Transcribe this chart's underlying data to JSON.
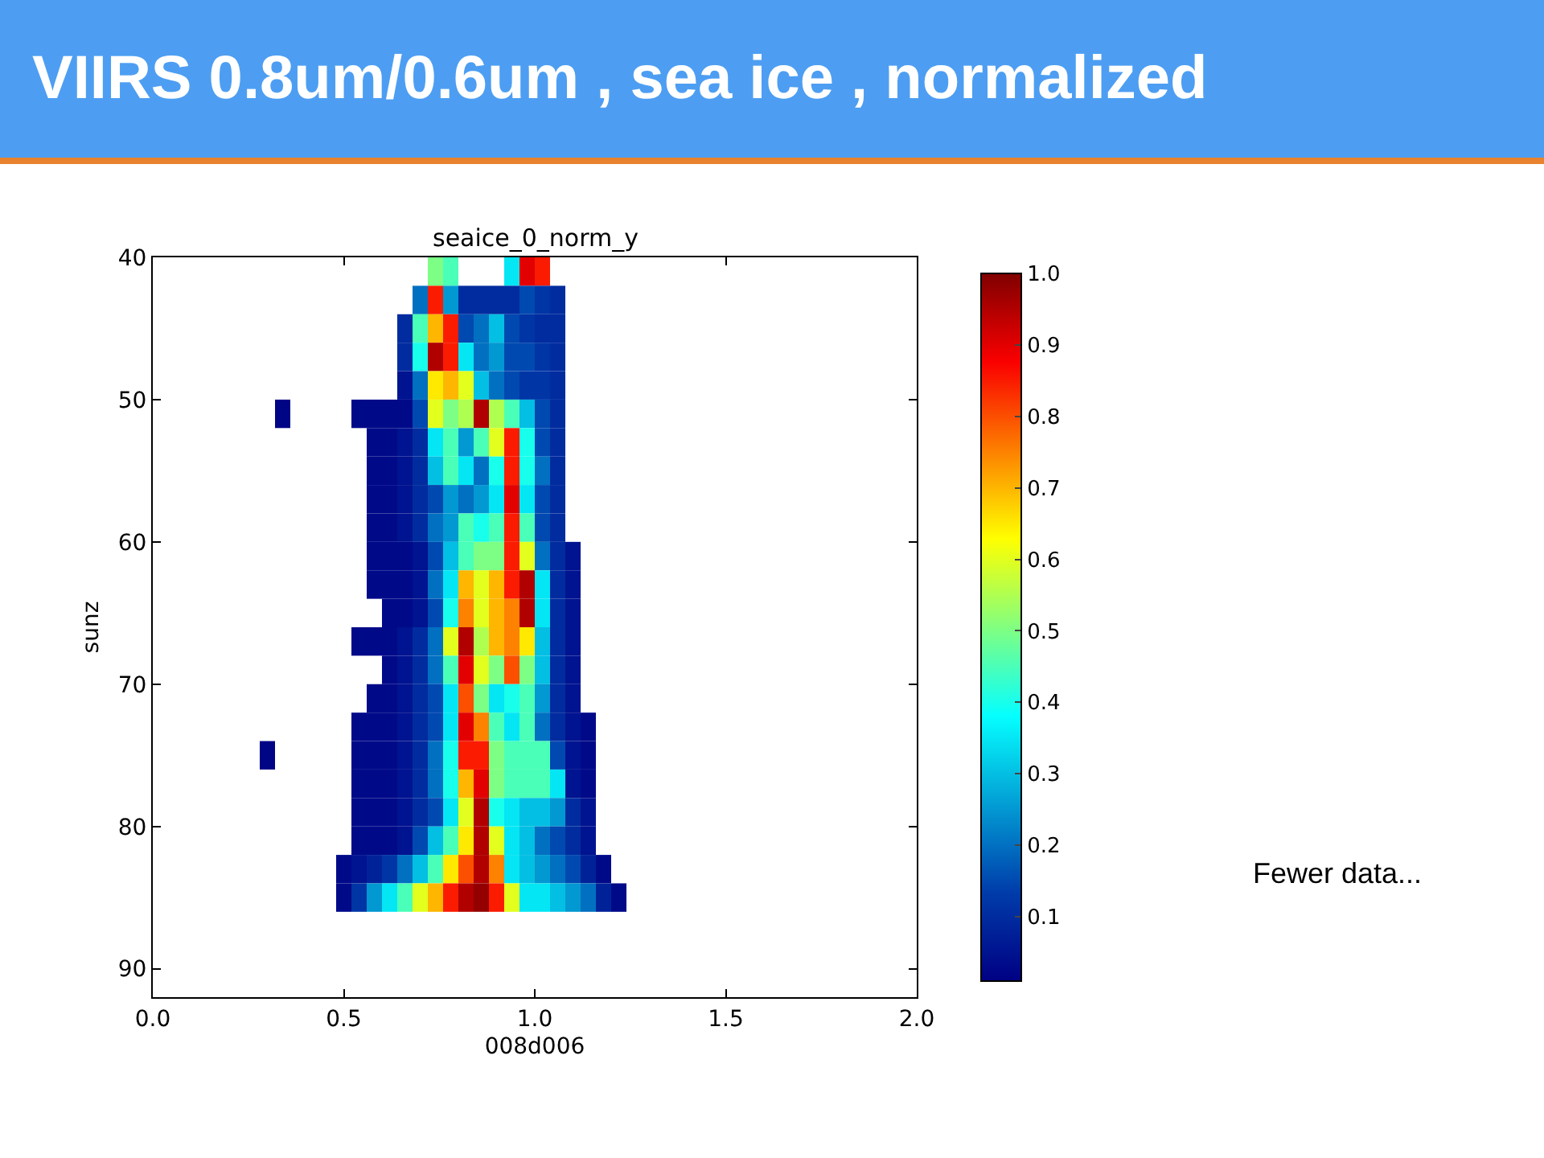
{
  "chart_data": {
    "type": "heatmap",
    "title": "VIIRS 0.8um/0.6um , sea ice , normalized",
    "subtitle": "seaice_0_norm_y",
    "xlabel": "008d006",
    "ylabel": "sunz",
    "x": [
      0.3,
      0.34,
      0.38,
      0.42,
      0.46,
      0.5,
      0.54,
      0.58,
      0.62,
      0.66,
      0.7,
      0.74,
      0.78,
      0.82,
      0.86,
      0.9,
      0.94,
      0.98,
      1.02,
      1.06,
      1.1,
      1.14,
      1.18,
      1.22
    ],
    "y": [
      41,
      43,
      45,
      47,
      49,
      51,
      53,
      55,
      57,
      59,
      61,
      63,
      65,
      67,
      69,
      71,
      73,
      75,
      77,
      79,
      81,
      83,
      85
    ],
    "cells": [
      [
        null,
        null,
        null,
        null,
        null,
        null,
        null,
        null,
        null,
        null,
        null,
        0.5,
        0.45,
        null,
        null,
        null,
        0.35,
        0.9,
        0.85,
        null,
        null,
        null,
        null,
        null
      ],
      [
        null,
        null,
        null,
        null,
        null,
        null,
        null,
        null,
        null,
        null,
        0.2,
        0.85,
        0.25,
        0.1,
        0.1,
        0.1,
        0.1,
        0.15,
        0.12,
        0.1,
        null,
        null,
        null,
        null
      ],
      [
        null,
        null,
        null,
        null,
        null,
        null,
        null,
        null,
        null,
        0.1,
        0.45,
        0.7,
        0.85,
        0.15,
        0.2,
        0.3,
        0.15,
        0.12,
        0.1,
        0.1,
        null,
        null,
        null,
        null
      ],
      [
        null,
        null,
        null,
        null,
        null,
        null,
        null,
        null,
        null,
        0.1,
        0.4,
        0.95,
        0.85,
        0.35,
        0.2,
        0.25,
        0.15,
        0.15,
        0.12,
        0.1,
        null,
        null,
        null,
        null
      ],
      [
        null,
        null,
        null,
        null,
        null,
        null,
        null,
        null,
        null,
        0.05,
        0.2,
        0.65,
        0.7,
        0.6,
        0.3,
        0.2,
        0.15,
        0.12,
        0.12,
        0.1,
        null,
        null,
        null,
        null
      ],
      [
        null,
        0.02,
        null,
        null,
        null,
        null,
        0.03,
        0.03,
        0.03,
        0.03,
        0.15,
        0.6,
        0.5,
        0.55,
        0.95,
        0.55,
        0.45,
        0.3,
        0.15,
        0.1,
        null,
        null,
        null,
        null
      ],
      [
        null,
        null,
        null,
        null,
        null,
        null,
        null,
        0.03,
        0.03,
        0.05,
        0.1,
        0.35,
        0.45,
        0.25,
        0.45,
        0.6,
        0.85,
        0.4,
        0.15,
        0.1,
        null,
        null,
        null,
        null
      ],
      [
        null,
        null,
        null,
        null,
        null,
        null,
        null,
        0.03,
        0.03,
        0.05,
        0.1,
        0.3,
        0.45,
        0.35,
        0.2,
        0.4,
        0.85,
        0.4,
        0.2,
        0.1,
        null,
        null,
        null,
        null
      ],
      [
        null,
        null,
        null,
        null,
        null,
        null,
        null,
        0.03,
        0.03,
        0.05,
        0.1,
        0.15,
        0.25,
        0.2,
        0.25,
        0.35,
        0.9,
        0.35,
        0.15,
        0.1,
        null,
        null,
        null,
        null
      ],
      [
        null,
        null,
        null,
        null,
        null,
        null,
        null,
        0.03,
        0.03,
        0.05,
        0.1,
        0.2,
        0.25,
        0.45,
        0.4,
        0.45,
        0.85,
        0.45,
        0.15,
        0.1,
        null,
        null,
        null,
        null
      ],
      [
        null,
        null,
        null,
        null,
        null,
        null,
        null,
        0.03,
        0.03,
        0.03,
        0.05,
        0.15,
        0.3,
        0.45,
        0.5,
        0.5,
        0.85,
        0.6,
        0.2,
        0.1,
        0.05,
        null,
        null,
        null
      ],
      [
        null,
        null,
        null,
        null,
        null,
        null,
        null,
        0.03,
        0.03,
        0.03,
        0.05,
        0.2,
        0.35,
        0.7,
        0.6,
        0.7,
        0.85,
        0.95,
        0.35,
        0.1,
        0.05,
        null,
        null,
        null
      ],
      [
        null,
        null,
        null,
        null,
        null,
        null,
        null,
        null,
        0.03,
        0.03,
        0.05,
        0.15,
        0.4,
        0.75,
        0.6,
        0.7,
        0.75,
        0.95,
        0.35,
        0.1,
        0.05,
        null,
        null,
        null
      ],
      [
        null,
        null,
        null,
        null,
        null,
        null,
        0.03,
        0.03,
        0.03,
        0.05,
        0.1,
        0.2,
        0.6,
        0.95,
        0.55,
        0.7,
        0.75,
        0.65,
        0.3,
        0.1,
        0.05,
        null,
        null,
        null
      ],
      [
        null,
        null,
        null,
        null,
        null,
        null,
        null,
        null,
        0.03,
        0.05,
        0.1,
        0.2,
        0.45,
        0.9,
        0.6,
        0.5,
        0.8,
        0.5,
        0.3,
        0.1,
        0.05,
        null,
        null,
        null
      ],
      [
        null,
        null,
        null,
        null,
        null,
        null,
        null,
        0.03,
        0.03,
        0.05,
        0.1,
        0.15,
        0.35,
        0.8,
        0.5,
        0.35,
        0.4,
        0.45,
        0.25,
        0.1,
        0.05,
        null,
        null,
        null
      ],
      [
        null,
        null,
        null,
        null,
        null,
        null,
        0.03,
        0.03,
        0.03,
        0.05,
        0.1,
        0.15,
        0.35,
        0.9,
        0.75,
        0.45,
        0.35,
        0.45,
        0.2,
        0.1,
        0.05,
        0.03,
        null,
        null
      ],
      [
        0.02,
        null,
        null,
        null,
        null,
        null,
        0.03,
        0.03,
        0.03,
        0.05,
        0.1,
        0.2,
        0.4,
        0.85,
        0.85,
        0.5,
        0.45,
        0.45,
        0.45,
        0.15,
        0.05,
        0.03,
        null,
        null
      ],
      [
        null,
        null,
        null,
        null,
        null,
        null,
        0.03,
        0.03,
        0.03,
        0.05,
        0.1,
        0.2,
        0.4,
        0.7,
        0.9,
        0.5,
        0.45,
        0.45,
        0.45,
        0.35,
        0.05,
        0.03,
        null,
        null
      ],
      [
        null,
        null,
        null,
        null,
        null,
        null,
        0.03,
        0.03,
        0.03,
        0.05,
        0.1,
        0.15,
        0.35,
        0.6,
        0.95,
        0.4,
        0.35,
        0.3,
        0.3,
        0.25,
        0.1,
        0.05,
        null,
        null
      ],
      [
        null,
        null,
        null,
        null,
        null,
        null,
        0.03,
        0.03,
        0.03,
        0.05,
        0.15,
        0.3,
        0.45,
        0.65,
        0.95,
        0.6,
        0.35,
        0.3,
        0.2,
        0.15,
        0.1,
        0.05,
        null,
        null
      ],
      [
        null,
        null,
        null,
        null,
        null,
        0.03,
        0.05,
        0.08,
        0.12,
        0.2,
        0.3,
        0.45,
        0.65,
        0.8,
        0.95,
        0.75,
        0.35,
        0.3,
        0.25,
        0.2,
        0.15,
        0.08,
        0.03,
        null
      ],
      [
        null,
        null,
        null,
        null,
        null,
        0.03,
        0.12,
        0.25,
        0.35,
        0.45,
        0.6,
        0.7,
        0.85,
        0.95,
        0.98,
        0.85,
        0.6,
        0.35,
        0.35,
        0.3,
        0.25,
        0.2,
        0.08,
        0.03
      ]
    ],
    "clim": [
      0.01,
      1
    ],
    "cticks": [
      0.1,
      0.2,
      0.3,
      0.4,
      0.5,
      0.6,
      0.7,
      0.8,
      0.9,
      {
        "value": 1,
        "label": "1.0"
      }
    ],
    "xlim": [
      0,
      2
    ],
    "xticks": [
      {
        "value": 0,
        "label": "0.0"
      },
      0.5,
      {
        "value": 1,
        "label": "1.0"
      },
      1.5,
      {
        "value": 2,
        "label": "2.0"
      }
    ],
    "ylim": [
      92,
      40
    ],
    "yticks": [
      40,
      50,
      60,
      70,
      80,
      90
    ],
    "annotations": [
      "Fewer data..."
    ]
  }
}
